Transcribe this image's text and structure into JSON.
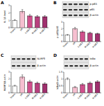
{
  "chart_data": [
    {
      "type": "bar",
      "title": "A",
      "y_label": "IL-1β level",
      "categories": [
        "Sham",
        "I/R",
        "L-DEX",
        "M-DEX",
        "H-DEX"
      ],
      "values": [
        1.0,
        2.2,
        1.6,
        1.5,
        1.5
      ],
      "errors": [
        0.1,
        0.25,
        0.2,
        0.15,
        0.15
      ],
      "colors": [
        "#ffffff",
        "#f6bfd0",
        "#d0508c",
        "#b8407e",
        "#a0306e"
      ],
      "ylim": [
        0,
        3
      ],
      "yticks": [
        0,
        1,
        2,
        3
      ]
    },
    {
      "type": "bar",
      "title": "B",
      "y_label": "p-p65/p65",
      "categories": [
        "Sham",
        "I/R",
        "L-DEX",
        "M-DEX",
        "H-DEX"
      ],
      "values": [
        1.0,
        2.0,
        1.5,
        1.3,
        1.2
      ],
      "errors": [
        0.1,
        0.2,
        0.15,
        0.15,
        0.1
      ],
      "colors": [
        "#ffffff",
        "#f6bfd0",
        "#d0508c",
        "#b8407e",
        "#a0306e"
      ],
      "ylim": [
        0,
        3
      ],
      "yticks": [
        0,
        1,
        2,
        3
      ],
      "annotations": [
        "p-p65",
        "p65",
        "β-actin"
      ]
    },
    {
      "type": "bar",
      "title": "C",
      "y_label": "NLRP3/β-actin",
      "categories": [
        "Sham",
        "I/R",
        "L-DEX",
        "M-DEX",
        "H-DEX"
      ],
      "values": [
        1.0,
        2.3,
        1.6,
        1.4,
        1.3
      ],
      "errors": [
        0.1,
        0.3,
        0.2,
        0.15,
        0.15
      ],
      "colors": [
        "#ffffff",
        "#f6bfd0",
        "#d0508c",
        "#b8407e",
        "#a0306e"
      ],
      "ylim": [
        0,
        3
      ],
      "yticks": [
        0,
        1,
        2,
        3
      ],
      "annotations": [
        "NLRP3",
        "β-actin"
      ]
    },
    {
      "type": "bar",
      "title": "D",
      "y_label": "IκBα/β-actin",
      "categories": [
        "Sham",
        "I/R",
        "L-DEX",
        "M-DEX",
        "H-DEX"
      ],
      "values": [
        1.0,
        0.4,
        0.6,
        0.7,
        0.8
      ],
      "errors": [
        0.08,
        0.06,
        0.08,
        0.08,
        0.08
      ],
      "colors": [
        "#ffffff",
        "#f6bfd0",
        "#d0508c",
        "#b8407e",
        "#a0306e"
      ],
      "ylim": [
        0,
        1.5
      ],
      "yticks": [
        0,
        0.5,
        1,
        1.5
      ],
      "annotations": [
        "IκBα",
        "β-actin"
      ]
    }
  ]
}
